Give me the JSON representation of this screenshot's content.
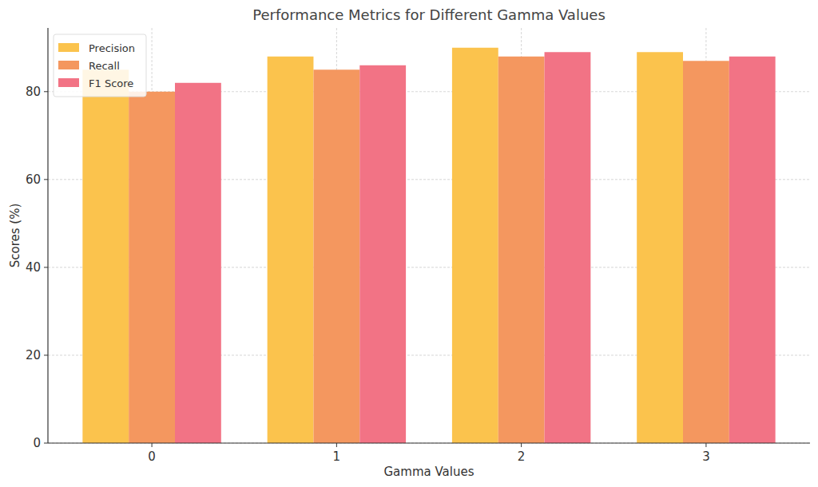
{
  "chart_data": {
    "type": "bar",
    "title": "Performance Metrics for Different Gamma Values",
    "x_label": "Gamma Values",
    "y_label": "Scores (%)",
    "categories": [
      "0",
      "1",
      "2",
      "3"
    ],
    "series": [
      {
        "name": "Precision",
        "color": "#fbc34d",
        "values": [
          85,
          88,
          90,
          89
        ]
      },
      {
        "name": "Recall",
        "color": "#f4975f",
        "values": [
          80,
          85,
          88,
          87
        ]
      },
      {
        "name": "F1 Score",
        "color": "#f27385",
        "values": [
          82,
          86,
          89,
          88
        ]
      }
    ],
    "ylim": [
      0,
      94.5
    ],
    "yticks": [
      0,
      20,
      40,
      60,
      80
    ],
    "grid": true,
    "legend": "upper left"
  }
}
